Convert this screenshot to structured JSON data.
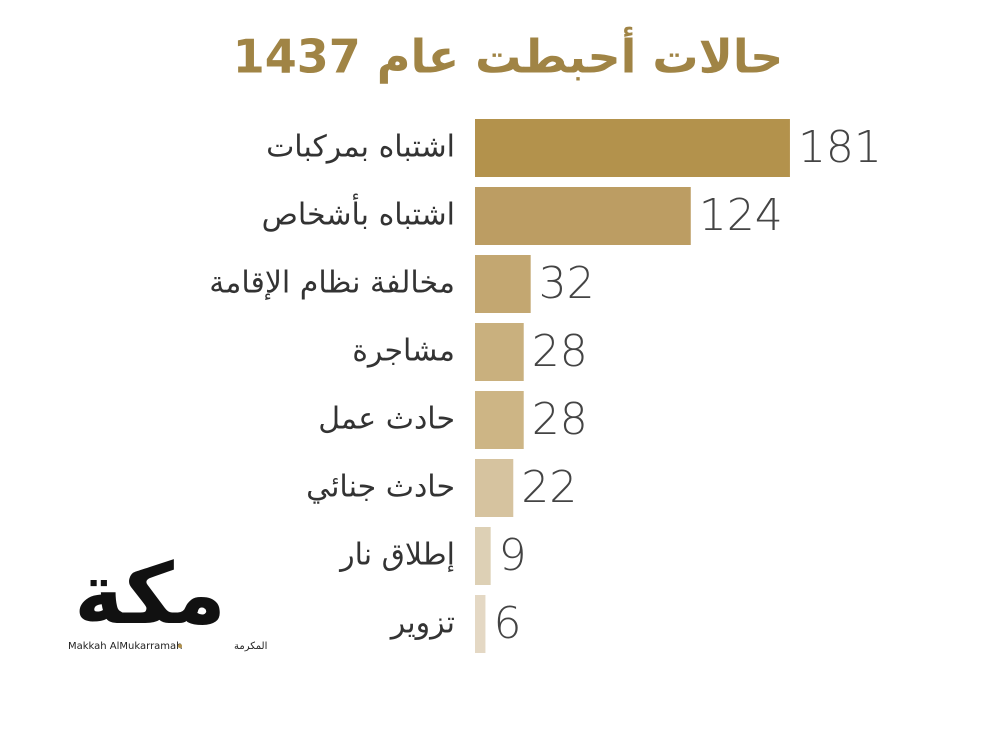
{
  "chart_data": {
    "type": "bar",
    "orientation": "horizontal",
    "title": "حالات أحبطت عام 1437",
    "categories": [
      "اشتباه بمركبات",
      "اشتباه بأشخاص",
      "مخالفة نظام الإقامة",
      "مشاجرة",
      "حادث عمل",
      "حادث جنائي",
      "إطلاق نار",
      "تزوير"
    ],
    "values": [
      181,
      124,
      32,
      28,
      28,
      22,
      9,
      6
    ],
    "colors": [
      "#b3924c",
      "#bc9d63",
      "#c3a771",
      "#c9b07e",
      "#cdb585",
      "#d6c39f",
      "#ddd0b5",
      "#e4d8c4"
    ]
  },
  "logo": {
    "name": "مكة",
    "subtitle_en": "Makkah AlMukarramah",
    "subtitle_ar": "المكرمة"
  }
}
